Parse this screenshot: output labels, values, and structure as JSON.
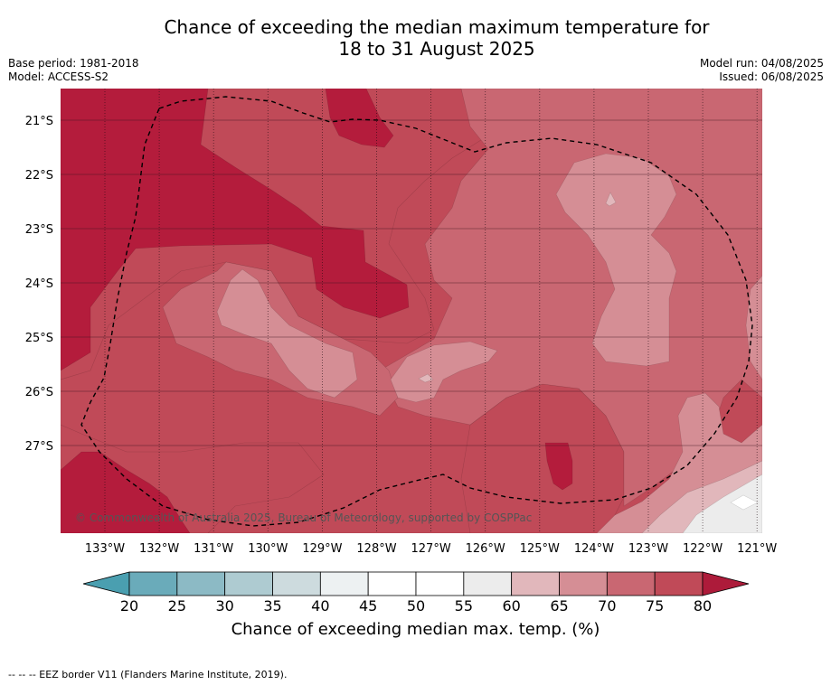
{
  "title_line1": "Chance of exceeding the median maximum temperature for",
  "title_line2": "18 to 31 August 2025",
  "meta": {
    "base_period": "Base period: 1981-2018",
    "model": "Model: ACCESS-S2",
    "model_run": "Model run: 04/08/2025",
    "issued": "Issued: 06/08/2025"
  },
  "map": {
    "lat_labels": [
      "21°S",
      "22°S",
      "23°S",
      "24°S",
      "25°S",
      "26°S",
      "27°S"
    ],
    "lon_labels": [
      "133°W",
      "132°W",
      "131°W",
      "130°W",
      "129°W",
      "128°W",
      "127°W",
      "126°W",
      "125°W",
      "124°W",
      "123°W",
      "122°W",
      "121°W"
    ],
    "copyright": "© Commonwealth of Australia 2025, Bureau of Meteorology, supported by COSPPac",
    "colors": {
      "c80": "#b41c3c",
      "c75": "#c04a58",
      "c70": "#c96772",
      "c65": "#d58e95",
      "c60": "#e1b7bb",
      "c55": "#ececec",
      "c50": "#ffffff"
    }
  },
  "colorbar": {
    "ticks": [
      "20",
      "25",
      "30",
      "35",
      "40",
      "45",
      "50",
      "55",
      "60",
      "65",
      "70",
      "75",
      "80"
    ],
    "colors": [
      "#6aabba",
      "#8cbac5",
      "#aecbd1",
      "#cddbde",
      "#edf1f2",
      "#ffffff",
      "#ffffff",
      "#ececec",
      "#e1b7bb",
      "#d58e95",
      "#c96772",
      "#c04a58"
    ],
    "low_color": "#4a9fb0",
    "high_color": "#ad1b3a",
    "label": "Chance of exceeding median max. temp. (%)"
  },
  "footnote": "--  --  -- EEZ border V11 (Flanders Marine Institute, 2019)."
}
